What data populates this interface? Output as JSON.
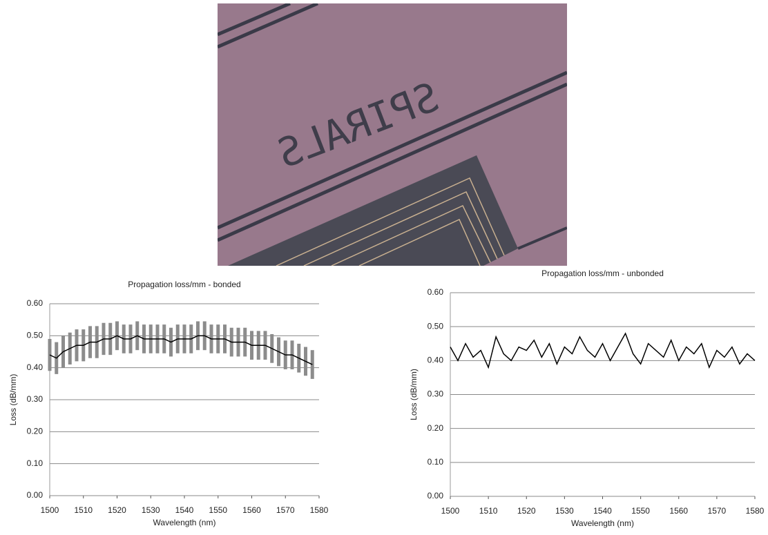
{
  "photo": {
    "text": "SPIRALS"
  },
  "chart_data": [
    {
      "type": "line",
      "title": "Propagation loss/mm - bonded",
      "x_label": "Wavelength (nm)",
      "y_label": "Loss (dB/mm)",
      "x": [
        1500,
        1502,
        1504,
        1506,
        1508,
        1510,
        1512,
        1514,
        1516,
        1518,
        1520,
        1522,
        1524,
        1526,
        1528,
        1530,
        1532,
        1534,
        1536,
        1538,
        1540,
        1542,
        1544,
        1546,
        1548,
        1550,
        1552,
        1554,
        1556,
        1558,
        1560,
        1562,
        1564,
        1566,
        1568,
        1570,
        1572,
        1574,
        1576,
        1578
      ],
      "values": [
        0.44,
        0.43,
        0.45,
        0.46,
        0.47,
        0.47,
        0.48,
        0.48,
        0.49,
        0.49,
        0.5,
        0.49,
        0.49,
        0.5,
        0.49,
        0.49,
        0.49,
        0.49,
        0.48,
        0.49,
        0.49,
        0.49,
        0.5,
        0.5,
        0.49,
        0.49,
        0.49,
        0.48,
        0.48,
        0.48,
        0.47,
        0.47,
        0.47,
        0.46,
        0.45,
        0.44,
        0.44,
        0.43,
        0.42,
        0.41
      ],
      "errors": [
        0.05,
        0.05,
        0.05,
        0.05,
        0.05,
        0.05,
        0.05,
        0.05,
        0.05,
        0.05,
        0.045,
        0.045,
        0.045,
        0.045,
        0.045,
        0.045,
        0.045,
        0.045,
        0.045,
        0.045,
        0.045,
        0.045,
        0.045,
        0.045,
        0.045,
        0.045,
        0.045,
        0.045,
        0.045,
        0.045,
        0.045,
        0.045,
        0.045,
        0.045,
        0.045,
        0.045,
        0.045,
        0.045,
        0.045,
        0.045
      ],
      "color": "#000000",
      "error_color": "#8c8c8c",
      "xlim": [
        1500,
        1580
      ],
      "xticks": [
        1500,
        1510,
        1520,
        1530,
        1540,
        1550,
        1560,
        1570,
        1580
      ],
      "ylim": [
        0,
        0.6
      ],
      "yticks": [
        {
          "value": 0,
          "label": "0.00"
        },
        {
          "value": 0.1,
          "label": "0.10"
        },
        {
          "value": 0.2,
          "label": "0.20"
        },
        {
          "value": 0.3,
          "label": "0.30"
        },
        {
          "value": 0.4,
          "label": "0.40"
        },
        {
          "value": 0.5,
          "label": "0.50"
        },
        {
          "value": 0.6,
          "label": "0.60"
        }
      ],
      "grid": true
    },
    {
      "type": "line",
      "title": "Propagation loss/mm - unbonded",
      "x_label": "Wavelength (nm)",
      "y_label": "Loss (dB/mm)",
      "x": [
        1500,
        1502,
        1504,
        1506,
        1508,
        1510,
        1512,
        1514,
        1516,
        1518,
        1520,
        1522,
        1524,
        1526,
        1528,
        1530,
        1532,
        1534,
        1536,
        1538,
        1540,
        1542,
        1544,
        1546,
        1548,
        1550,
        1552,
        1554,
        1556,
        1558,
        1560,
        1562,
        1564,
        1566,
        1568,
        1570,
        1572,
        1574,
        1576,
        1578,
        1580
      ],
      "values": [
        0.44,
        0.4,
        0.45,
        0.41,
        0.43,
        0.38,
        0.47,
        0.42,
        0.4,
        0.44,
        0.43,
        0.46,
        0.41,
        0.45,
        0.39,
        0.44,
        0.42,
        0.47,
        0.43,
        0.41,
        0.45,
        0.4,
        0.44,
        0.48,
        0.42,
        0.39,
        0.45,
        0.43,
        0.41,
        0.46,
        0.4,
        0.44,
        0.42,
        0.45,
        0.38,
        0.43,
        0.41,
        0.44,
        0.39,
        0.42,
        0.4
      ],
      "color": "#000000",
      "xlim": [
        1500,
        1580
      ],
      "xticks": [
        1500,
        1510,
        1520,
        1530,
        1540,
        1550,
        1560,
        1570,
        1580
      ],
      "ylim": [
        0,
        0.6
      ],
      "yticks": [
        {
          "value": 0,
          "label": "0.00"
        },
        {
          "value": 0.1,
          "label": "0.10"
        },
        {
          "value": 0.2,
          "label": "0.20"
        },
        {
          "value": 0.3,
          "label": "0.30"
        },
        {
          "value": 0.4,
          "label": "0.40"
        },
        {
          "value": 0.5,
          "label": "0.50"
        },
        {
          "value": 0.6,
          "label": "0.60"
        }
      ],
      "grid": true
    }
  ]
}
